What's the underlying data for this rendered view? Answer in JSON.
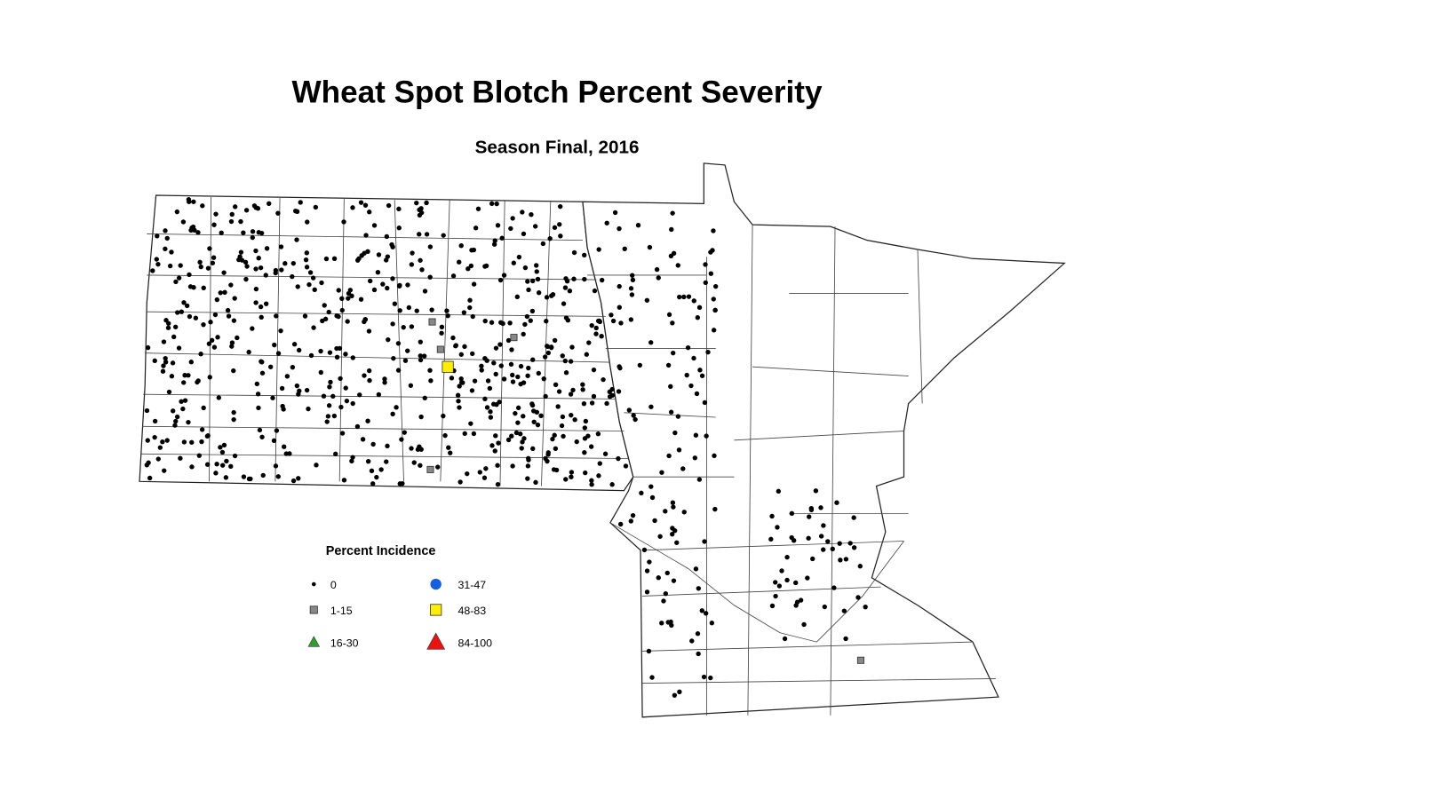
{
  "title": "Wheat Spot Blotch Percent Severity",
  "subtitle": "Season Final, 2016",
  "legend": {
    "title": "Percent Incidence",
    "items": [
      {
        "label": "0",
        "shape": "dot",
        "color": "#000000"
      },
      {
        "label": "1-15",
        "shape": "square",
        "color": "#888888"
      },
      {
        "label": "16-30",
        "shape": "triangle",
        "color": "#2ca02c"
      },
      {
        "label": "31-47",
        "shape": "circle",
        "color": "#1560e0"
      },
      {
        "label": "48-83",
        "shape": "square",
        "color": "#ffee00"
      },
      {
        "label": "84-100",
        "shape": "triangle",
        "color": "#ee1111"
      }
    ]
  }
}
